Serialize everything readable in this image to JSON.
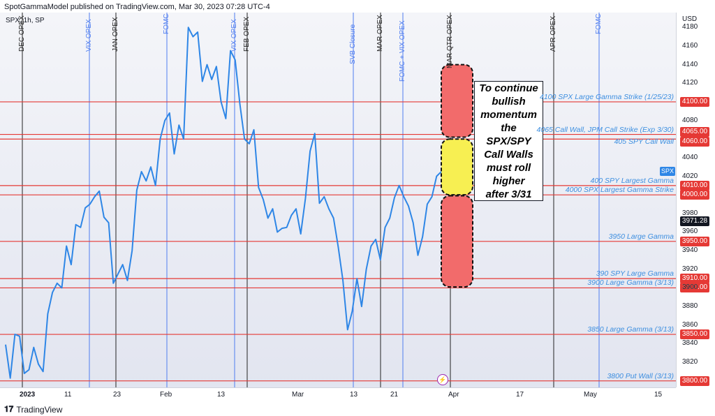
{
  "header": {
    "caption": "SpotGammaModel published on TradingView.com, Mar 30, 2023 07:28 UTC-4",
    "symbol": "SPX, 1h, SP",
    "currency": "USD",
    "footer": "TradingView"
  },
  "callout": {
    "lines": [
      "To continue",
      "bullish",
      "momentum",
      "the",
      "SPX/SPY",
      "Call Walls",
      "must roll",
      "higher",
      "after 3/31"
    ]
  },
  "colors": {
    "price_line": "#2e86e6",
    "level_line": "#e53935",
    "blue_event": "#4f7df0",
    "black_event": "#222222",
    "red_zone": "#f26b6b",
    "yellow_zone": "#f7ef52",
    "background": "#e9ebf4"
  },
  "chart_data": {
    "type": "line",
    "title": "",
    "xlabel": "",
    "ylabel": "",
    "ylim": [
      3793,
      4196
    ],
    "x_ticks": [
      "2023",
      "11",
      "23",
      "Feb",
      "13",
      "Mar",
      "13",
      "21",
      "Apr",
      "17",
      "May",
      "15"
    ],
    "y_ticks": [
      3820,
      3840,
      3860,
      3880,
      3900,
      3920,
      3940,
      3960,
      3980,
      4020,
      4040,
      4080,
      4120,
      4140,
      4160,
      4180
    ],
    "current_price": "3971.28",
    "symbol_badge": "SPX",
    "series": [
      {
        "values": [
          3839,
          3803,
          3850,
          3848,
          3808,
          3812,
          3836,
          3818,
          3810,
          3872,
          3895,
          3905,
          3900,
          3945,
          3925,
          3968,
          3965,
          3986,
          3990,
          3998,
          4004,
          3976,
          3970,
          3905,
          3915,
          3925,
          3908,
          3940,
          4005,
          4025,
          4015,
          4030,
          4010,
          4060,
          4080,
          4088,
          4044,
          4075,
          4060,
          4180,
          4170,
          4175,
          4122,
          4140,
          4124,
          4138,
          4100,
          4082,
          4155,
          4145,
          4098,
          4060,
          4055,
          4070,
          4008,
          3995,
          3975,
          3985,
          3960,
          3964,
          3965,
          3978,
          3985,
          3958,
          3996,
          4047,
          4066,
          3991,
          3998,
          3985,
          3975,
          3944,
          3908,
          3855,
          3875,
          3910,
          3880,
          3920,
          3945,
          3952,
          3930,
          3965,
          3975,
          3997,
          4010,
          3998,
          3988,
          3970,
          3935,
          3955,
          3990,
          3998,
          4020,
          4025
        ]
      }
    ],
    "levels": [
      {
        "value": 4100,
        "label": "4100 SPX Large Gamma Strike (1/25/23)",
        "tag": "4100.00"
      },
      {
        "value": 4065,
        "label": "4065 Call Wall, JPM Call Strike (Exp 3/30)",
        "tag": "4065.00"
      },
      {
        "value": 4060,
        "label": "405 SPY Call Wall",
        "tag": "4060.00"
      },
      {
        "value": 4010,
        "label": "400 SPY Largest Gamma",
        "tag": "4010.00"
      },
      {
        "value": 4000,
        "label": "4000 SPX Largest Gamma Strike",
        "tag": "4000.00"
      },
      {
        "value": 3950,
        "label": "3950 Large Gamma",
        "tag": "3950.00"
      },
      {
        "value": 3910,
        "label": "390 SPY Large Gamma",
        "tag": "3910.00"
      },
      {
        "value": 3900,
        "label": "3900 Large Gamma (3/13)",
        "tag": "3900.00"
      },
      {
        "value": 3850,
        "label": "3850 Large Gamma (3/13)",
        "tag": "3850.00"
      },
      {
        "value": 3800,
        "label": "3800 Put Wall (3/13)",
        "tag": "3800.00"
      }
    ],
    "events": [
      {
        "label": "DEC OPEX",
        "color": "black"
      },
      {
        "label": "VIX OPEX",
        "color": "blue"
      },
      {
        "label": "JAN OPEX",
        "color": "black"
      },
      {
        "label": "FOMC",
        "color": "blue"
      },
      {
        "label": "VIX OPEX",
        "color": "blue"
      },
      {
        "label": "FEB OPEX",
        "color": "black"
      },
      {
        "label": "SVB Closure",
        "color": "blue"
      },
      {
        "label": "MAR OPEX",
        "color": "black"
      },
      {
        "label": "FOMC + VIX OPEX",
        "color": "blue"
      },
      {
        "label": "MAR QTR OPEX",
        "color": "black"
      },
      {
        "label": "APR OPEX",
        "color": "black"
      },
      {
        "label": "FOMC",
        "color": "blue"
      }
    ]
  }
}
